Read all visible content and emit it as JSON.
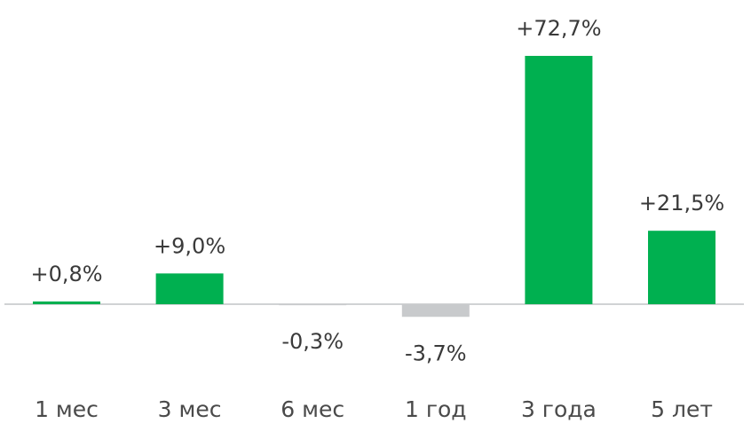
{
  "chart_data": {
    "type": "bar",
    "categories": [
      "1 мес",
      "3 мес",
      "6 мес",
      "1 год",
      "3 года",
      "5 лет"
    ],
    "values": [
      0.8,
      9.0,
      -0.3,
      -3.7,
      72.7,
      21.5
    ],
    "value_labels": [
      "+0,8%",
      "+9,0%",
      "-0,3%",
      "-3,7%",
      "+72,7%",
      "+21,5%"
    ],
    "color": "#00b050",
    "negative_color": "#c8cacc"
  }
}
